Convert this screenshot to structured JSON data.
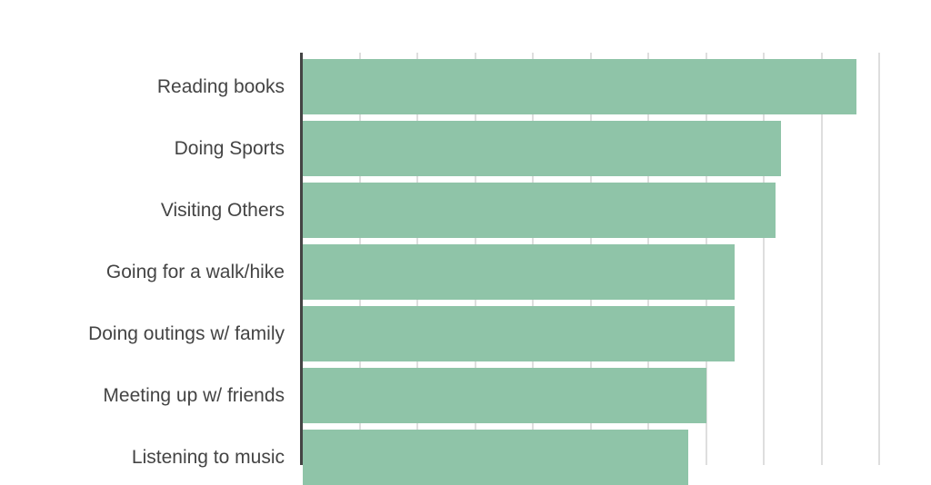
{
  "chart_data": {
    "type": "bar",
    "orientation": "horizontal",
    "title": "",
    "xlabel": "",
    "ylabel": "",
    "categories": [
      "Reading books",
      "Doing Sports",
      "Visiting Others",
      "Going for a walk/hike",
      "Doing outings w/ family",
      "Meeting up w/ friends",
      "Listening to music"
    ],
    "values": [
      9.6,
      8.3,
      8.2,
      7.5,
      7.5,
      7.0,
      6.7
    ],
    "value_units": "gridline units (tick labels not visible)",
    "xlim": [
      0,
      10
    ],
    "grid": true,
    "gridline_count": 10,
    "legend": null,
    "bar_color": "#8fc4a8",
    "axis_color": "#444444",
    "gridline_color": "#dedede",
    "label_color": "#444444"
  },
  "labels": [
    "Reading books",
    "Doing Sports",
    "Visiting Others",
    "Going for a walk/hike",
    "Doing outings w/ family",
    "Meeting up w/ friends",
    "Listening to music"
  ]
}
